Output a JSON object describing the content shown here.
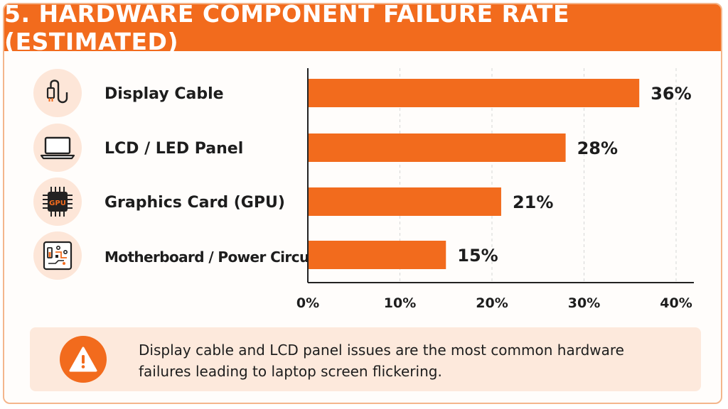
{
  "title": "5. HARDWARE COMPONENT FAILURE RATE (ESTIMATED)",
  "colors": {
    "accent": "#f26b1d",
    "bar": "#f26b1d",
    "icon_bg": "#fde6d8",
    "note_bg": "#fde9dc",
    "text": "#1d1d1d"
  },
  "rows": [
    {
      "label": "Display Cable",
      "icon": "cable-icon"
    },
    {
      "label": "LCD / LED Panel",
      "icon": "laptop-icon"
    },
    {
      "label": "Graphics Card (GPU)",
      "icon": "gpu-chip-icon",
      "icon_text": "GPU"
    },
    {
      "label": "Motherboard / Power Circuit",
      "icon": "circuit-board-icon"
    }
  ],
  "chart_data": {
    "type": "bar",
    "orientation": "horizontal",
    "title": "5. HARDWARE COMPONENT FAILURE RATE (ESTIMATED)",
    "categories": [
      "Display Cable",
      "LCD / LED Panel",
      "Graphics Card (GPU)",
      "Motherboard / Power Circuit"
    ],
    "values": [
      36,
      28,
      21,
      15
    ],
    "value_labels": [
      "36%",
      "28%",
      "21%",
      "15%"
    ],
    "xlim": [
      0,
      40
    ],
    "x_ticks": [
      0,
      10,
      20,
      30,
      40
    ],
    "x_tick_labels": [
      "0%",
      "10%",
      "20%",
      "30%",
      "40%"
    ],
    "unit": "%",
    "grid": "vertical dashed",
    "legend": "none"
  },
  "note": {
    "icon": "warning-icon",
    "text": "Display cable and LCD panel issues are the most common hardware failures leading to laptop screen flickering."
  }
}
